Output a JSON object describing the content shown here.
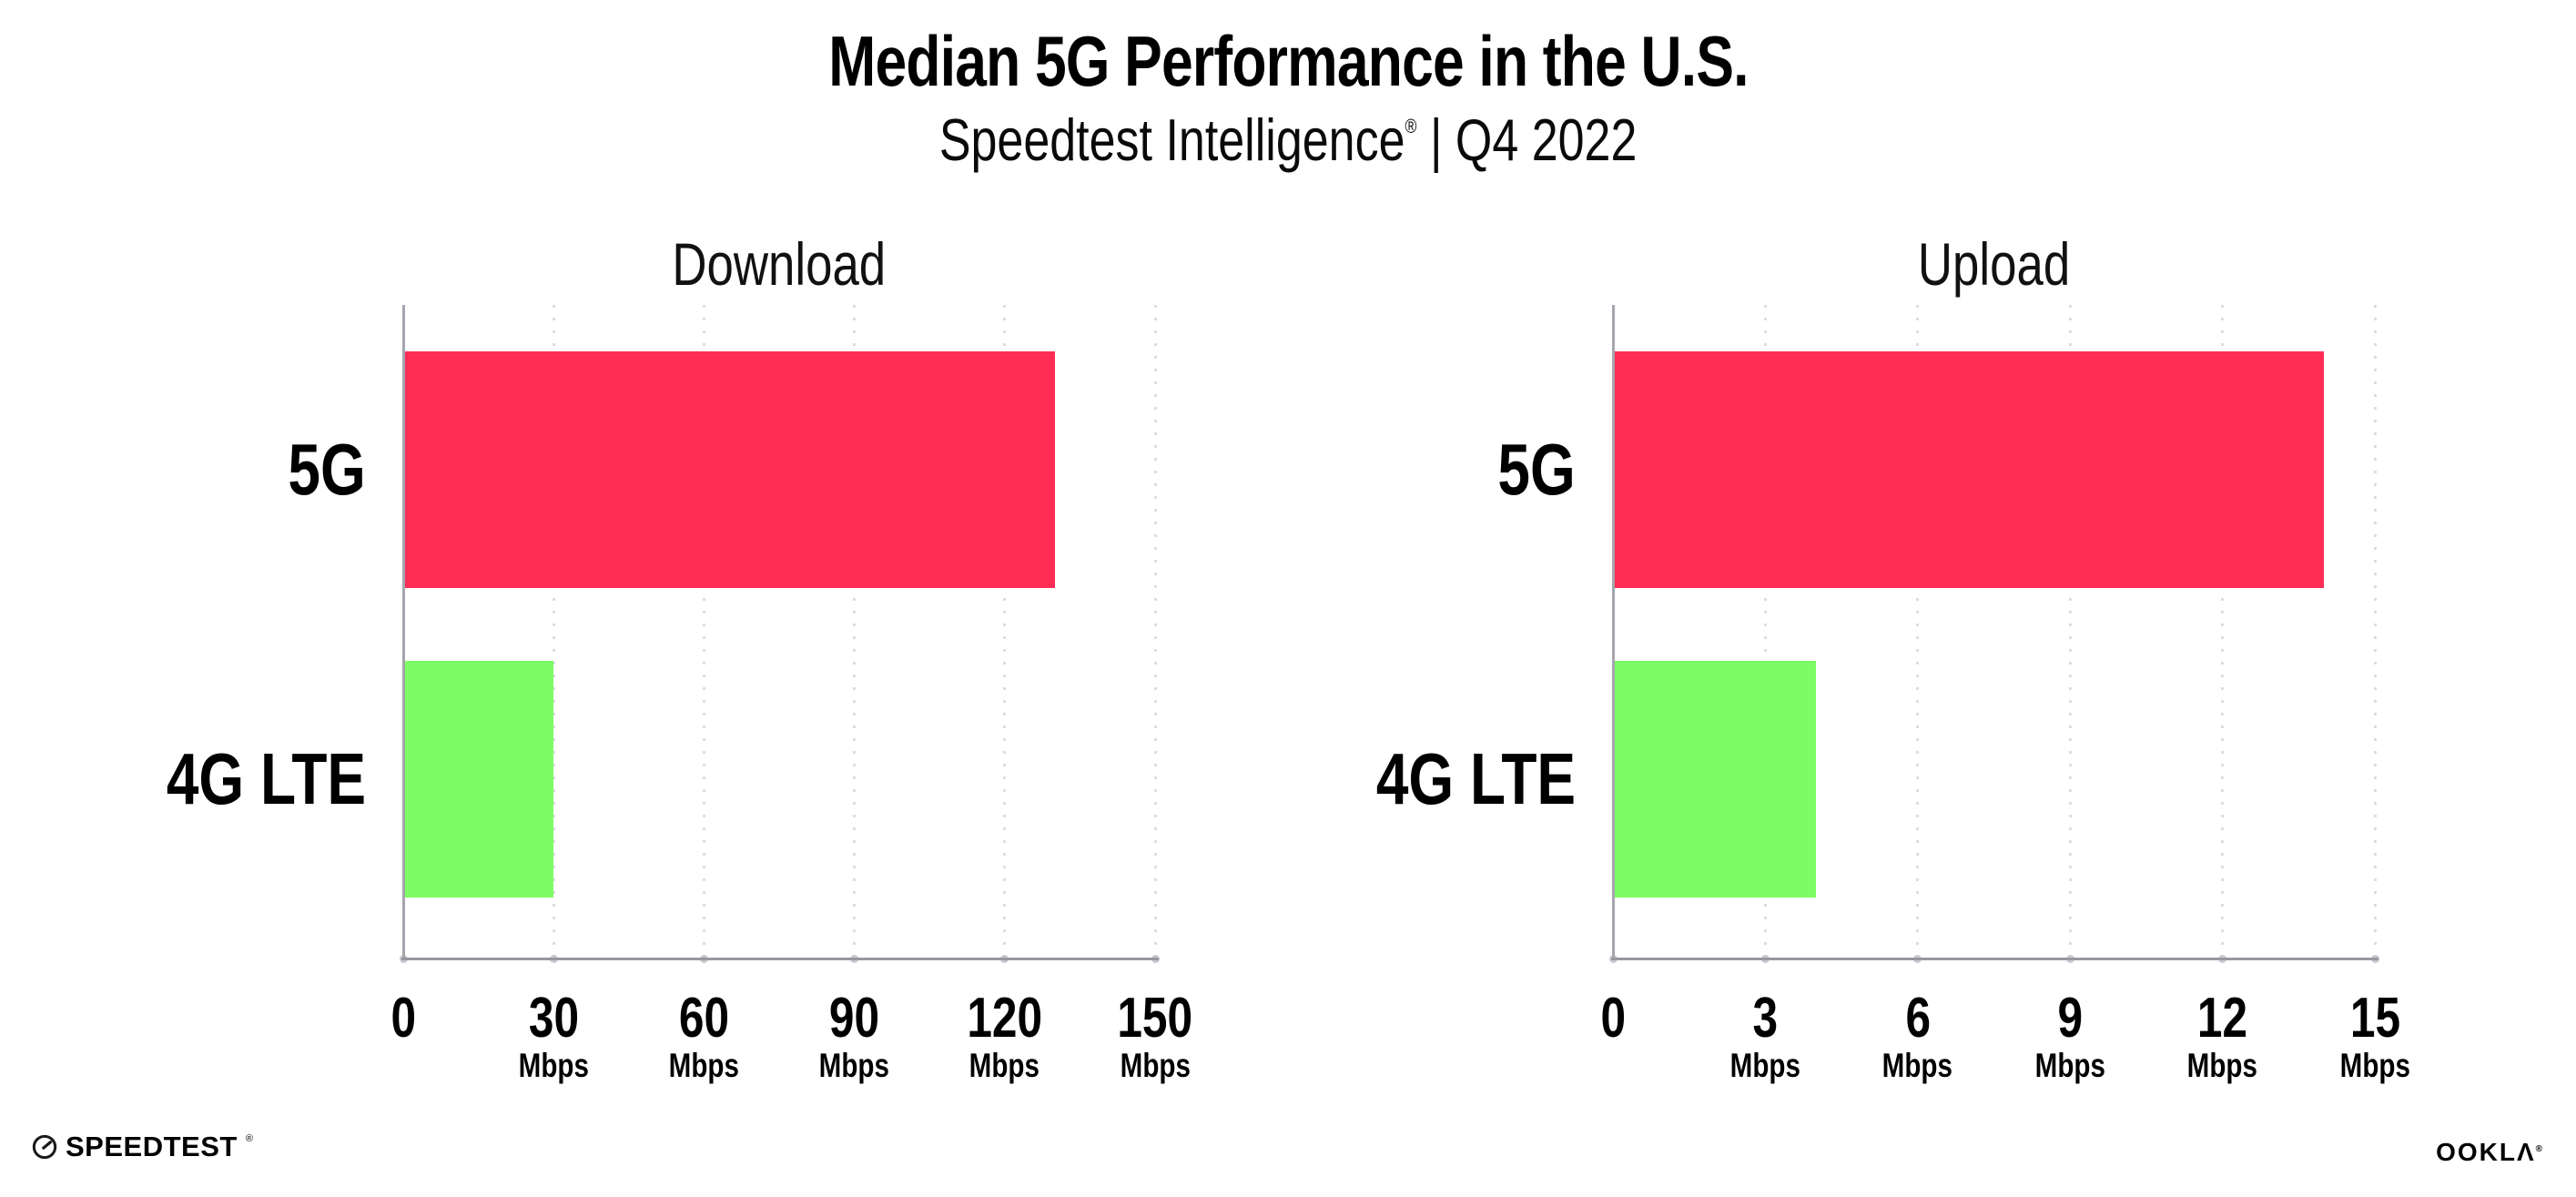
{
  "header": {
    "title": "Median 5G Performance in the U.S.",
    "subtitle_brand": "Speedtest Intelligence",
    "subtitle_reg": "®",
    "subtitle_rest": " | Q4 2022"
  },
  "chart_data": [
    {
      "type": "bar",
      "orientation": "horizontal",
      "title": "Download",
      "categories": [
        "5G",
        "4G LTE"
      ],
      "values": [
        130,
        30
      ],
      "unit": "Mbps",
      "xlim": [
        0,
        150
      ],
      "xticks": [
        0,
        30,
        60,
        90,
        120,
        150
      ],
      "tick_unit_label": "Mbps",
      "bar_colors": [
        "#ff2d55",
        "#7efc64"
      ],
      "grid": "dotted-vertical",
      "legend": "none"
    },
    {
      "type": "bar",
      "orientation": "horizontal",
      "title": "Upload",
      "categories": [
        "5G",
        "4G LTE"
      ],
      "values": [
        14,
        4
      ],
      "unit": "Mbps",
      "xlim": [
        0,
        15
      ],
      "xticks": [
        0,
        3,
        6,
        9,
        12,
        15
      ],
      "tick_unit_label": "Mbps",
      "bar_colors": [
        "#ff2d55",
        "#7efc64"
      ],
      "grid": "dotted-vertical",
      "legend": "none"
    }
  ],
  "footer": {
    "speedtest_label": "SPEEDTEST",
    "speedtest_reg": "®",
    "ookla_label": "OOKLΛ",
    "ookla_reg": "®"
  },
  "colors": {
    "bar_5g": "#ff2d55",
    "bar_4g_lte": "#7efc64",
    "axis": "#a5a5ad",
    "baseline": "#97979e",
    "grid_dot": "#dcdce6",
    "tick_dot": "#c8c8d3",
    "text": "#000000"
  }
}
